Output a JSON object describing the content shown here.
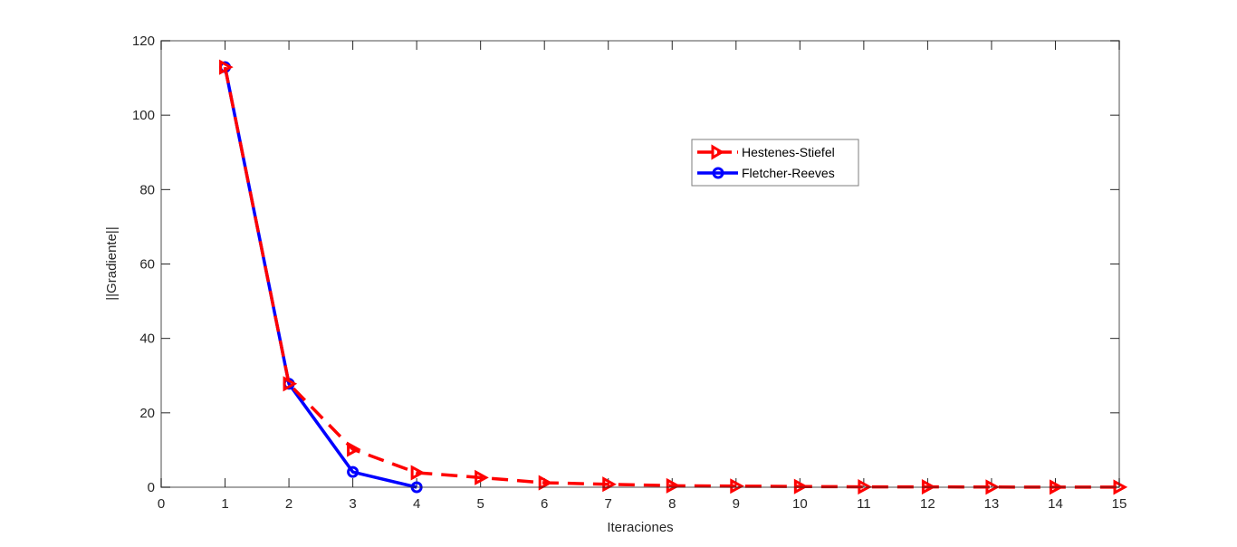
{
  "chart_data": {
    "type": "line",
    "title": "",
    "xlabel": "Iteraciones",
    "ylabel": "||Gradiente||",
    "xlim": [
      0,
      15
    ],
    "ylim": [
      0,
      120
    ],
    "xticks": [
      0,
      1,
      2,
      3,
      4,
      5,
      6,
      7,
      8,
      9,
      10,
      11,
      12,
      13,
      14,
      15
    ],
    "yticks": [
      0,
      20,
      40,
      60,
      80,
      100,
      120
    ],
    "grid": false,
    "legend_position": "upper-right-inside",
    "series": [
      {
        "name": "Hestenes-Stiefel",
        "color": "#ff0000",
        "line_style": "dashed",
        "marker": "triangle-right",
        "x": [
          1,
          2,
          3,
          4,
          5,
          6,
          7,
          8,
          9,
          10,
          11,
          12,
          13,
          14,
          15
        ],
        "values": [
          112.9,
          27.8,
          10.2,
          3.9,
          2.6,
          1.2,
          0.8,
          0.4,
          0.3,
          0.2,
          0.1,
          0.1,
          0.05,
          0.03,
          0.02
        ]
      },
      {
        "name": "Fletcher-Reeves",
        "color": "#0000ff",
        "line_style": "solid",
        "marker": "circle",
        "x": [
          1,
          2,
          3,
          4
        ],
        "values": [
          112.9,
          27.8,
          4.1,
          0.0
        ]
      }
    ]
  },
  "legend": {
    "items": [
      "Hestenes-Stiefel",
      "Fletcher-Reeves"
    ]
  }
}
